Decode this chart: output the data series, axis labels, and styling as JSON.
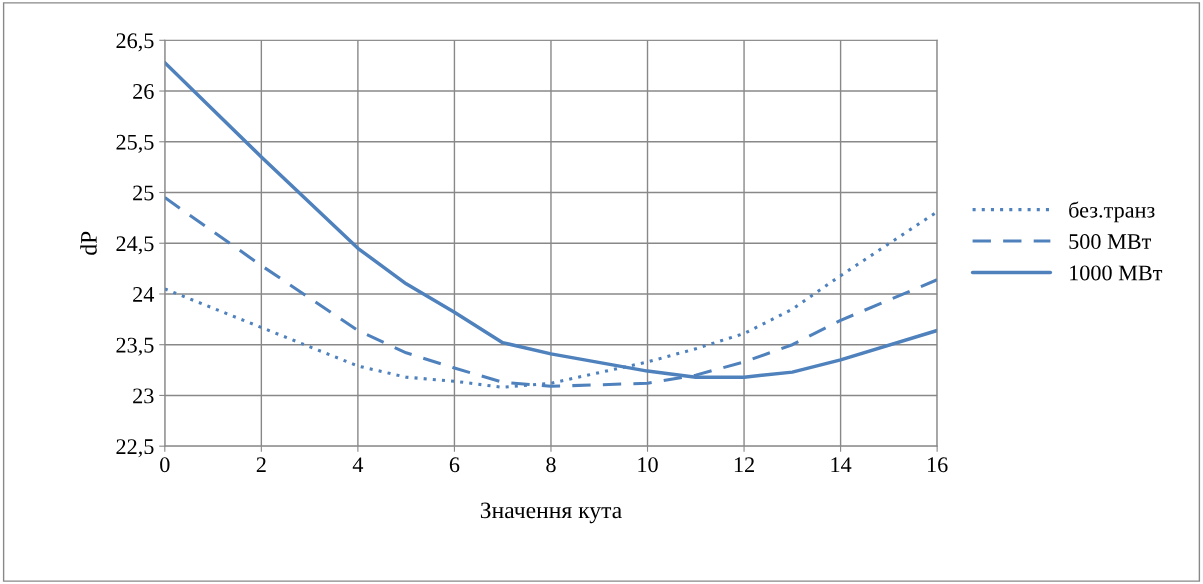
{
  "chart_data": {
    "type": "line",
    "xlabel": "Значення кута",
    "ylabel": "dP",
    "x": [
      0,
      2,
      4,
      5,
      6,
      7,
      8,
      10,
      11,
      12,
      13,
      14,
      16
    ],
    "xlim": [
      0,
      16
    ],
    "xticks": [
      0,
      2,
      4,
      6,
      8,
      10,
      12,
      14,
      16
    ],
    "ylim": [
      22.5,
      26.5
    ],
    "yticks": [
      {
        "value": 22.5,
        "label": "22,5"
      },
      23,
      {
        "value": 23.5,
        "label": "23,5"
      },
      24,
      {
        "value": 24.5,
        "label": "24,5"
      },
      25,
      {
        "value": 25.5,
        "label": "25,5"
      },
      26,
      {
        "value": 26.5,
        "label": "26,5"
      }
    ],
    "grid": true,
    "legend": "right",
    "marker": "none",
    "series": [
      {
        "name": "без.транз",
        "color": "#4f81bd",
        "line_style": "dotted",
        "values": [
          24.05,
          23.67,
          23.29,
          23.18,
          23.14,
          23.08,
          23.12,
          23.33,
          23.46,
          23.61,
          23.85,
          24.18,
          24.81
        ]
      },
      {
        "name": "500 МВт",
        "color": "#4f81bd",
        "line_style": "dashed",
        "values": [
          24.95,
          24.28,
          23.64,
          23.42,
          23.27,
          23.13,
          23.09,
          23.12,
          23.2,
          23.33,
          23.5,
          23.74,
          24.14
        ]
      },
      {
        "name": "1000 МВт",
        "color": "#4f81bd",
        "line_style": "solid",
        "values": [
          26.28,
          25.35,
          24.45,
          24.1,
          23.82,
          23.52,
          23.41,
          23.24,
          23.18,
          23.18,
          23.23,
          23.35,
          23.64
        ]
      }
    ]
  }
}
